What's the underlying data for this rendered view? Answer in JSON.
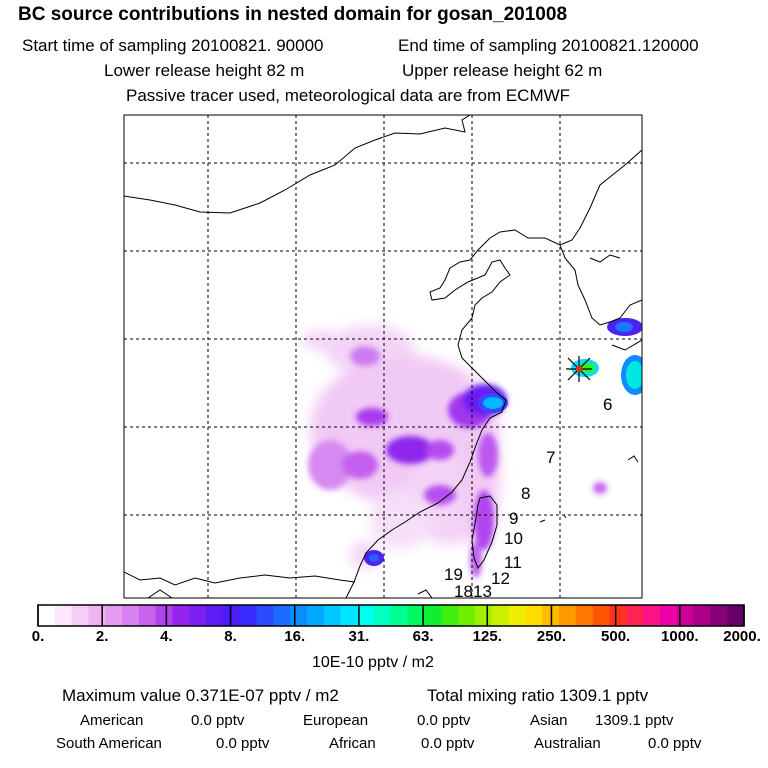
{
  "header": {
    "title": "BC  source contributions in nested domain for gosan_201008",
    "start": "Start time of sampling 20100821. 90000",
    "end": "End time of sampling 20100821.120000",
    "lower": "Lower release height   82 m",
    "upper": "Upper release height   62 m",
    "tracer": "Passive tracer used, meteorological data are from ECMWF"
  },
  "map": {
    "labels": [
      "6",
      "7",
      "8",
      "9",
      "10",
      "11",
      "12",
      "13",
      "18",
      "19"
    ]
  },
  "colorbar": {
    "ticks": [
      "0.",
      "2.",
      "4.",
      "8.",
      "16.",
      "31.",
      "63.",
      "125.",
      "250.",
      "500.",
      "1000.",
      "2000."
    ],
    "unit": "10E-10 pptv / m2",
    "colors": [
      "#ffffff",
      "#fbe6fb",
      "#f5cdf7",
      "#efb4f3",
      "#e59cf0",
      "#d882ef",
      "#c863ee",
      "#b143ee",
      "#9424ee",
      "#7b1ff2",
      "#5f1cf5",
      "#4b1ef8",
      "#3a2cff",
      "#2a4bff",
      "#1a6cff",
      "#0c8dff",
      "#00aaff",
      "#00c7ff",
      "#00e5ff",
      "#00ffee",
      "#00ffc0",
      "#00ff90",
      "#00f860",
      "#10ee30",
      "#40ee10",
      "#70ee00",
      "#a0ee00",
      "#ccee00",
      "#eeee00",
      "#ffdd00",
      "#ffbb00",
      "#ff9900",
      "#ff7700",
      "#ff5500",
      "#ff3322",
      "#ff2255",
      "#ff1188",
      "#ee00aa",
      "#cc0099",
      "#aa0088",
      "#880077",
      "#660066"
    ]
  },
  "summary": {
    "max": "Maximum value  0.371E-07 pptv / m2",
    "total": "Total mixing ratio      1309.1 pptv",
    "american": "American",
    "american_v": "0.0 pptv",
    "european": "European",
    "european_v": "0.0 pptv",
    "asian": "Asian",
    "asian_v": "1309.1 pptv",
    "south_american": "South American",
    "south_american_v": "0.0 pptv",
    "african": "African",
    "african_v": "0.0 pptv",
    "australian": "Australian",
    "australian_v": "0.0 pptv"
  }
}
